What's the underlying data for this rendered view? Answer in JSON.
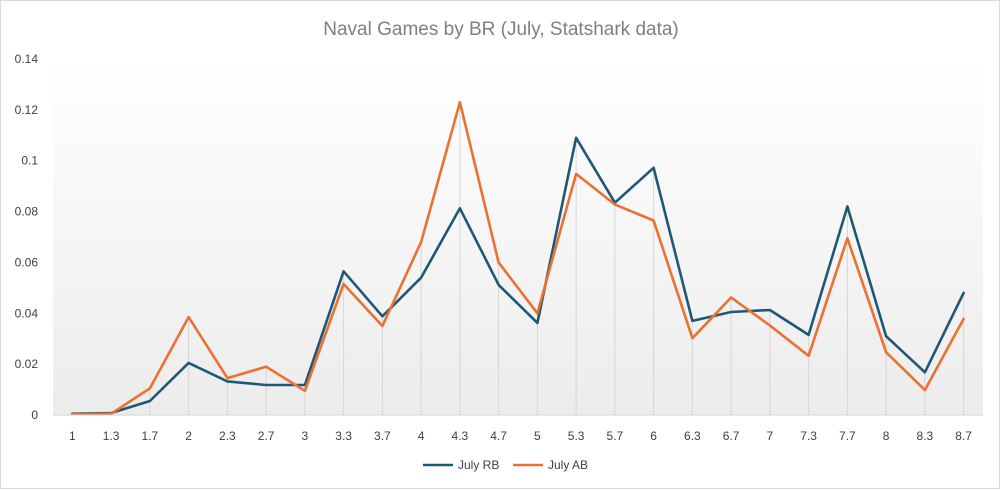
{
  "chart_data": {
    "type": "line",
    "title": "Naval Games by BR (July, Statshark data)",
    "xlabel": "",
    "ylabel": "",
    "categories": [
      "1",
      "1.3",
      "1.7",
      "2",
      "2.3",
      "2.7",
      "3",
      "3.3",
      "3.7",
      "4",
      "4.3",
      "4.7",
      "5",
      "5.3",
      "5.7",
      "6",
      "6.3",
      "6.7",
      "7",
      "7.3",
      "7.7",
      "8",
      "8.3",
      "8.7"
    ],
    "y_ticks": [
      "0",
      "0.02",
      "0.04",
      "0.06",
      "0.08",
      "0.1",
      "0.12",
      "0.14"
    ],
    "ylim": [
      0,
      0.14
    ],
    "grid": "vertical drop lines at each category",
    "legend_position": "bottom",
    "series": [
      {
        "name": "July RB",
        "color": "#1f5874",
        "values": [
          0.0005,
          0.0008,
          0.0055,
          0.0205,
          0.0132,
          0.0118,
          0.0118,
          0.0565,
          0.0388,
          0.054,
          0.0813,
          0.0512,
          0.0362,
          0.109,
          0.0835,
          0.0972,
          0.037,
          0.0405,
          0.0413,
          0.0315,
          0.082,
          0.031,
          0.0168,
          0.048
        ]
      },
      {
        "name": "July AB",
        "color": "#e97132",
        "values": [
          0.0003,
          0.0005,
          0.0105,
          0.0385,
          0.0145,
          0.019,
          0.0095,
          0.0515,
          0.035,
          0.068,
          0.123,
          0.06,
          0.04,
          0.0948,
          0.0828,
          0.0765,
          0.0302,
          0.0462,
          0.0352,
          0.0233,
          0.0695,
          0.0247,
          0.0098,
          0.0378
        ]
      }
    ]
  }
}
